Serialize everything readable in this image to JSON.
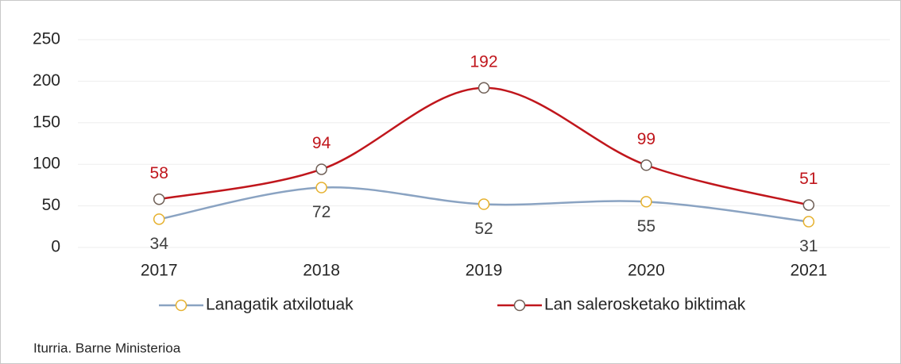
{
  "chart_data": {
    "type": "line",
    "categories": [
      "2017",
      "2018",
      "2019",
      "2020",
      "2021"
    ],
    "series": [
      {
        "name": "Lanagatik atxilotuak",
        "color": "#8aa3c2",
        "marker_color": "#e6b12e",
        "values": [
          34,
          72,
          52,
          55,
          31
        ]
      },
      {
        "name": "Lan salerosketako biktimak",
        "color": "#c0161c",
        "marker_color": "#6e5e55",
        "values": [
          58,
          94,
          192,
          99,
          51
        ]
      }
    ],
    "ylim": [
      0,
      250
    ],
    "yticks": [
      0,
      50,
      100,
      150,
      200,
      250
    ],
    "grid": true,
    "legend": "bottom",
    "source": "Iturria. Barne Ministerioa"
  }
}
